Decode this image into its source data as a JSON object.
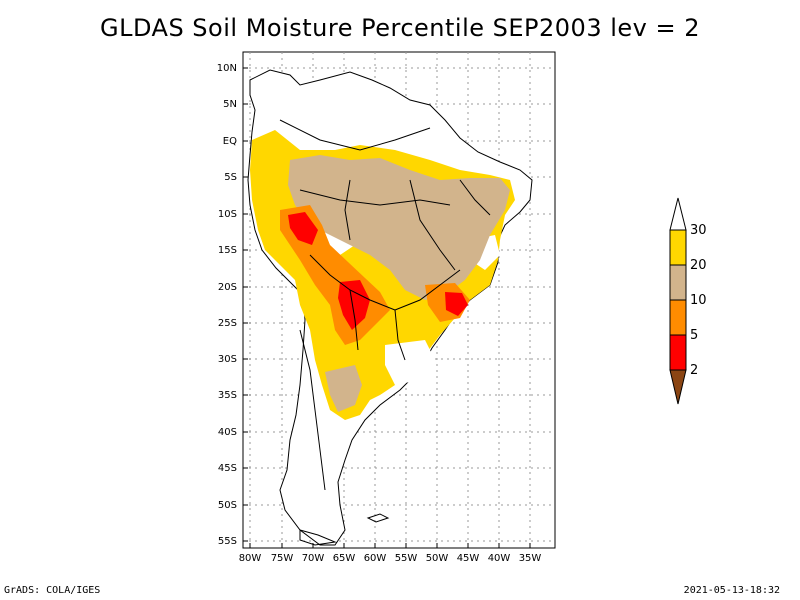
{
  "title": "GLDAS Soil Moisture Percentile SEP2003 lev = 2",
  "chart_data": {
    "type": "heatmap",
    "title": "GLDAS Soil Moisture Percentile SEP2003 lev = 2",
    "x_ticks": [
      "80W",
      "75W",
      "70W",
      "65W",
      "60W",
      "55W",
      "50W",
      "45W",
      "40W",
      "35W"
    ],
    "y_ticks": [
      "10N",
      "5N",
      "EQ",
      "5S",
      "10S",
      "15S",
      "20S",
      "25S",
      "30S",
      "35S",
      "40S",
      "45S",
      "50S",
      "55S"
    ],
    "xlim": [
      -81,
      -31
    ],
    "ylim": [
      -56,
      12
    ],
    "grid": true,
    "legend": {
      "placement": "right",
      "labels": [
        "30",
        "20",
        "10",
        "5",
        "2"
      ],
      "bins": [
        {
          "range": "> 30",
          "color": "#ffffff"
        },
        {
          "range": "20-30",
          "color": "#ffd700"
        },
        {
          "range": "10-20",
          "color": "#d2b48c"
        },
        {
          "range": "5-10",
          "color": "#ff8c00"
        },
        {
          "range": "2-5",
          "color": "#ff0000"
        },
        {
          "range": "< 2",
          "color": "#8b4513"
        }
      ]
    }
  },
  "footer": {
    "left": "GrADS: COLA/IGES",
    "right": "2021-05-13-18:32"
  }
}
